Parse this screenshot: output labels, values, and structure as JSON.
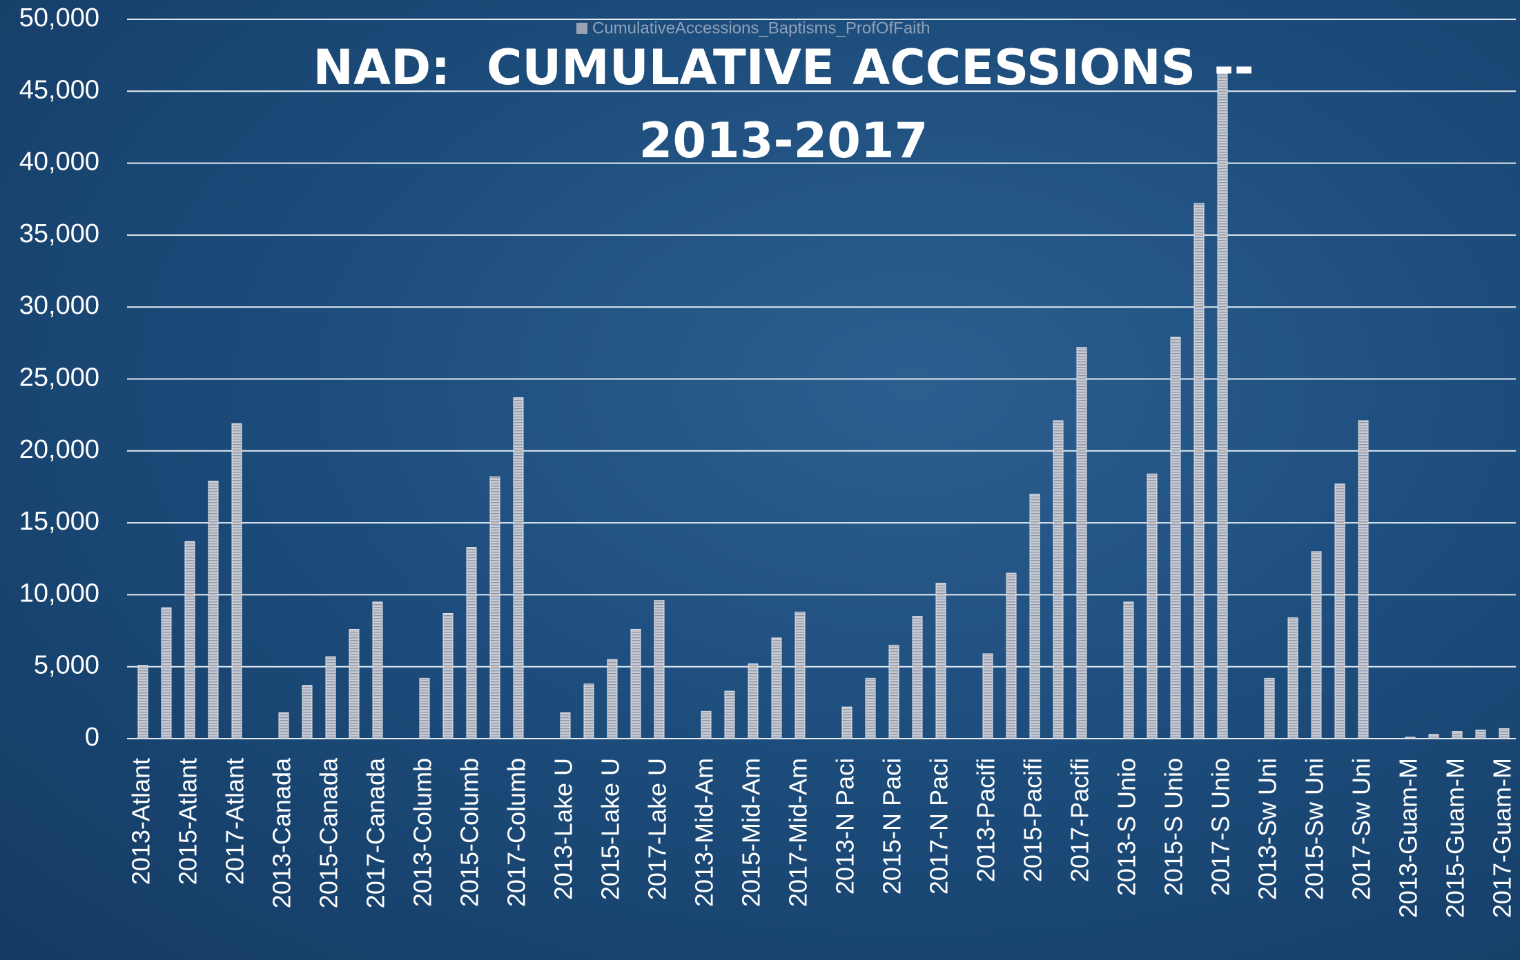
{
  "chart_data": {
    "type": "bar",
    "title": "NAD:  CUMULATIVE ACCESSIONS -- 2013-2017",
    "legend": "CumulativeAccessions_Baptisms_ProfOfFaith",
    "categories": [
      "2013-Atlant",
      null,
      "2015-Atlant",
      null,
      "2017-Atlant",
      null,
      "2013-Canada",
      null,
      "2015-Canada",
      null,
      "2017-Canada",
      null,
      "2013-Columb",
      null,
      "2015-Columb",
      null,
      "2017-Columb",
      null,
      "2013-Lake U",
      null,
      "2015-Lake U",
      null,
      "2017-Lake U",
      null,
      "2013-Mid-Am",
      null,
      "2015-Mid-Am",
      null,
      "2017-Mid-Am",
      null,
      "2013-N Paci",
      null,
      "2015-N Paci",
      null,
      "2017-N Paci",
      null,
      "2013-Pacifi",
      null,
      "2015-Pacifi",
      null,
      "2017-Pacifi",
      null,
      "2013-S Unio",
      null,
      "2015-S Unio",
      null,
      "2017-S Unio",
      null,
      "2013-Sw Uni",
      null,
      "2015-Sw Uni",
      null,
      "2017-Sw Uni",
      null,
      "2013-Guam-M",
      null,
      "2015-Guam-M",
      null,
      "2017-Guam-M"
    ],
    "values": [
      5100,
      9100,
      13700,
      17900,
      21900,
      null,
      1800,
      3700,
      5700,
      7600,
      9500,
      null,
      4200,
      8700,
      13300,
      18200,
      23700,
      null,
      1800,
      3800,
      5500,
      7600,
      9600,
      null,
      1900,
      3300,
      5200,
      7000,
      8800,
      null,
      2200,
      4200,
      6500,
      8500,
      10800,
      null,
      5900,
      11500,
      17000,
      22100,
      27200,
      null,
      9500,
      18400,
      27900,
      37200,
      46500,
      null,
      4200,
      8400,
      13000,
      17700,
      22100,
      null,
      100,
      300,
      500,
      600,
      700
    ],
    "color": "#c9ccd4",
    "ylim": [
      0,
      50000
    ],
    "yticks": [
      0,
      {
        "value": 5000,
        "label": "5,000"
      },
      {
        "value": 10000,
        "label": "10,000"
      },
      {
        "value": 15000,
        "label": "15,000"
      },
      {
        "value": 20000,
        "label": "20,000"
      },
      {
        "value": 25000,
        "label": "25,000"
      },
      {
        "value": 30000,
        "label": "30,000"
      },
      {
        "value": 35000,
        "label": "35,000"
      },
      {
        "value": 40000,
        "label": "40,000"
      },
      {
        "value": 45000,
        "label": "45,000"
      },
      {
        "value": 50000,
        "label": "50,000"
      }
    ],
    "grid": true
  }
}
